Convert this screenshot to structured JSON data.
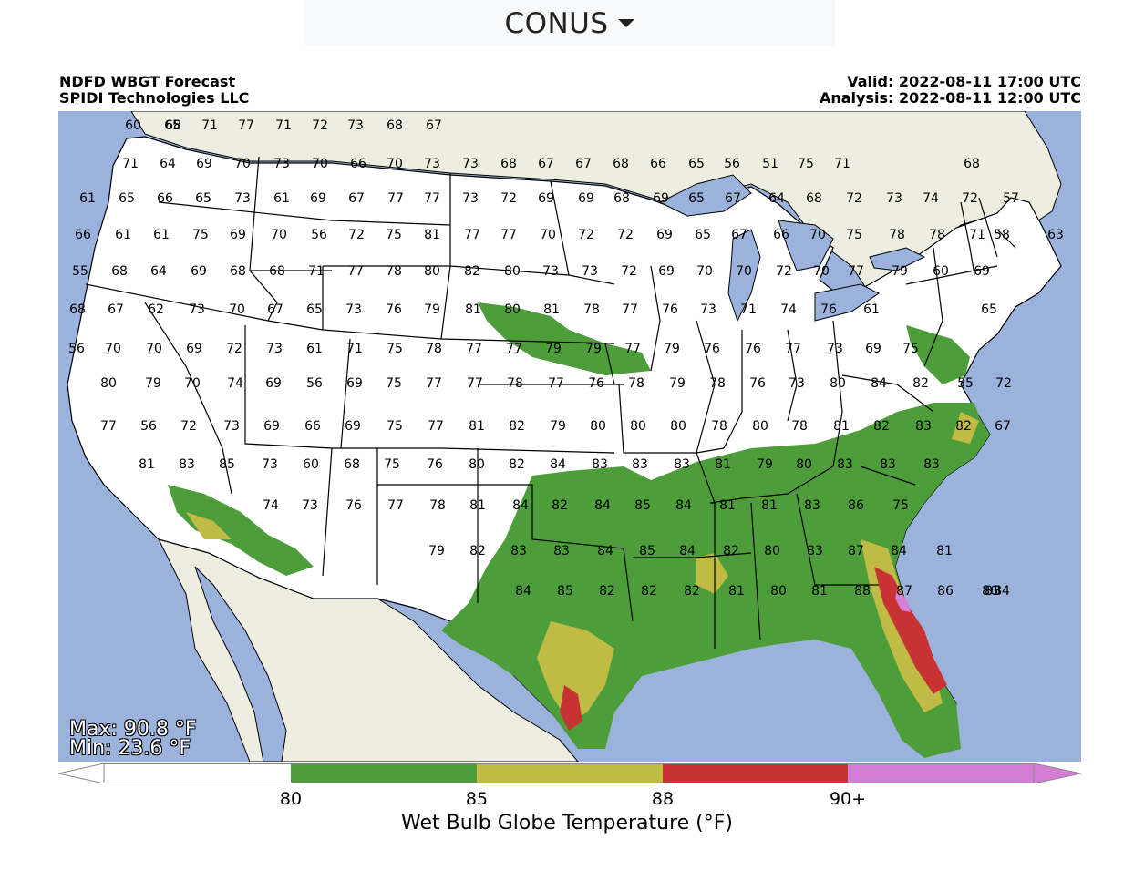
{
  "dropdown": {
    "selected": "CONUS"
  },
  "header": {
    "left": [
      "NDFD WBGT Forecast",
      "SPIDI Technologies LLC"
    ],
    "right": [
      "Valid: 2022-08-11 17:00 UTC",
      "Analysis: 2022-08-11 12:00 UTC"
    ]
  },
  "stats": {
    "max": "Max: 90.8 °F",
    "min": "Min: 23.6 °F"
  },
  "colorbar": {
    "title": "Wet Bulb Globe Temperature (°F)",
    "ticks": [
      "80",
      "85",
      "88",
      "90+"
    ],
    "bins": [
      {
        "name": "below-80",
        "color": "#ffffff"
      },
      {
        "name": "80-85",
        "color": "#4d9e3a"
      },
      {
        "name": "85-88",
        "color": "#bfbb44"
      },
      {
        "name": "88-90",
        "color": "#c73333"
      },
      {
        "name": "90-plus",
        "color": "#d67dd6"
      }
    ]
  },
  "colors": {
    "ocean": "#9bb3dc",
    "land_foreign": "#eeeee0",
    "green": "#4d9e3a",
    "yellow": "#bfbb44",
    "red": "#c73333",
    "pink": "#d67dd6"
  },
  "station_labels": [
    "68",
    "60",
    "65",
    "71",
    "77",
    "71",
    "72",
    "73",
    "68",
    "67",
    "71",
    "64",
    "69",
    "70",
    "73",
    "70",
    "66",
    "70",
    "73",
    "73",
    "68",
    "67",
    "67",
    "68",
    "66",
    "65",
    "56",
    "51",
    "75",
    "71",
    "68",
    "61",
    "65",
    "66",
    "65",
    "73",
    "61",
    "69",
    "67",
    "77",
    "77",
    "73",
    "72",
    "69",
    "69",
    "68",
    "69",
    "65",
    "67",
    "64",
    "68",
    "72",
    "73",
    "74",
    "72",
    "57",
    "66",
    "61",
    "61",
    "75",
    "69",
    "70",
    "56",
    "72",
    "75",
    "81",
    "77",
    "77",
    "70",
    "72",
    "72",
    "69",
    "65",
    "67",
    "66",
    "70",
    "75",
    "78",
    "78",
    "71",
    "58",
    "63",
    "55",
    "68",
    "64",
    "69",
    "68",
    "68",
    "71",
    "77",
    "78",
    "80",
    "82",
    "80",
    "73",
    "73",
    "72",
    "69",
    "70",
    "70",
    "72",
    "70",
    "77",
    "79",
    "60",
    "69",
    "68",
    "67",
    "62",
    "73",
    "70",
    "67",
    "65",
    "73",
    "76",
    "79",
    "81",
    "80",
    "81",
    "78",
    "77",
    "76",
    "73",
    "71",
    "74",
    "76",
    "61",
    "65",
    "56",
    "70",
    "70",
    "69",
    "72",
    "73",
    "61",
    "71",
    "75",
    "78",
    "77",
    "77",
    "79",
    "79",
    "77",
    "79",
    "76",
    "76",
    "77",
    "73",
    "69",
    "75",
    "80",
    "79",
    "70",
    "74",
    "69",
    "56",
    "69",
    "75",
    "77",
    "77",
    "78",
    "77",
    "76",
    "78",
    "79",
    "78",
    "76",
    "73",
    "80",
    "84",
    "82",
    "55",
    "72",
    "77",
    "56",
    "72",
    "73",
    "69",
    "66",
    "69",
    "75",
    "77",
    "81",
    "82",
    "79",
    "80",
    "80",
    "80",
    "78",
    "80",
    "78",
    "81",
    "82",
    "83",
    "82",
    "67",
    "81",
    "83",
    "85",
    "73",
    "60",
    "68",
    "75",
    "76",
    "80",
    "82",
    "84",
    "83",
    "83",
    "83",
    "81",
    "79",
    "80",
    "83",
    "83",
    "83",
    "74",
    "73",
    "76",
    "77",
    "78",
    "81",
    "84",
    "82",
    "84",
    "85",
    "84",
    "81",
    "81",
    "83",
    "86",
    "75",
    "79",
    "82",
    "83",
    "83",
    "84",
    "85",
    "84",
    "82",
    "80",
    "83",
    "87",
    "84",
    "81",
    "84",
    "85",
    "82",
    "82",
    "82",
    "81",
    "80",
    "81",
    "88",
    "87",
    "86",
    "83",
    "86",
    "84"
  ]
}
